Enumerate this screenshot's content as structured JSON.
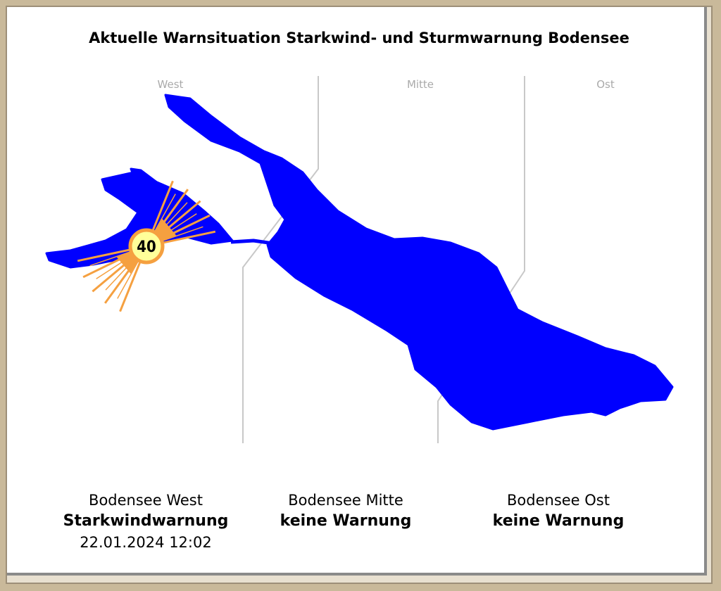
{
  "title": "Aktuelle Warnsituation Starkwind- und Sturmwarnung Bodensee",
  "map": {
    "region_labels": [
      "West",
      "Mitte",
      "Ost"
    ],
    "lake_color": "#0000ff",
    "warning_marker": {
      "value": "40",
      "icon": "wind-warning-sun-icon",
      "color": "#f5a040",
      "zone": "West"
    }
  },
  "zones": [
    {
      "name": "Bodensee West",
      "status": "Starkwindwarnung",
      "timestamp": "22.01.2024 12:02"
    },
    {
      "name": "Bodensee Mitte",
      "status": "keine Warnung"
    },
    {
      "name": "Bodensee Ost",
      "status": "keine Warnung"
    }
  ]
}
